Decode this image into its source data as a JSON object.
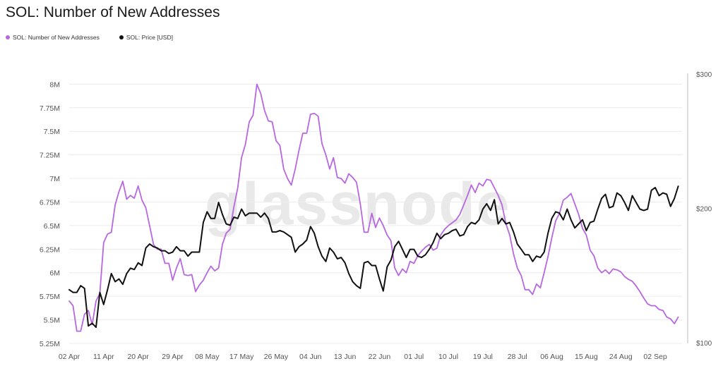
{
  "chart_data": {
    "type": "line",
    "title": "SOL: Number of New Addresses",
    "watermark": "glassnode",
    "x": [
      "02 Apr",
      "11 Apr",
      "20 Apr",
      "29 Apr",
      "08 May",
      "17 May",
      "26 May",
      "04 Jun",
      "13 Jun",
      "22 Jun",
      "01 Jul",
      "10 Jul",
      "19 Jul",
      "28 Jul",
      "06 Aug",
      "15 Aug",
      "24 Aug",
      "02 Sep"
    ],
    "y_left_ticks": [
      "8M",
      "7.75M",
      "7.5M",
      "7.25M",
      "7M",
      "6.75M",
      "6.5M",
      "6.25M",
      "6M",
      "5.75M",
      "5.5M",
      "5.25M"
    ],
    "y_right_ticks": [
      "$300",
      "$200",
      "$100"
    ],
    "ylim_left": [
      5250000,
      8100000
    ],
    "ylim_right": [
      100,
      300
    ],
    "x_range_days": [
      0,
      160
    ],
    "series": [
      {
        "name": "SOL: Number of New Addresses",
        "color": "#b767e0",
        "axis": "left",
        "points": [
          [
            0,
            5.7
          ],
          [
            1,
            5.65
          ],
          [
            2,
            5.38
          ],
          [
            3,
            5.38
          ],
          [
            4,
            5.56
          ],
          [
            5,
            5.6
          ],
          [
            6,
            5.45
          ],
          [
            7,
            5.7
          ],
          [
            8,
            5.78
          ],
          [
            9,
            6.32
          ],
          [
            10,
            6.41
          ],
          [
            11,
            6.43
          ],
          [
            12,
            6.72
          ],
          [
            13,
            6.86
          ],
          [
            14,
            6.97
          ],
          [
            15,
            6.78
          ],
          [
            16,
            6.82
          ],
          [
            17,
            6.79
          ],
          [
            18,
            6.92
          ],
          [
            19,
            6.77
          ],
          [
            20,
            6.69
          ],
          [
            21,
            6.5
          ],
          [
            22,
            6.3
          ],
          [
            23,
            6.25
          ],
          [
            24,
            6.25
          ],
          [
            25,
            6.1
          ],
          [
            26,
            6.1
          ],
          [
            27,
            5.92
          ],
          [
            28,
            6.05
          ],
          [
            29,
            6.15
          ],
          [
            30,
            5.98
          ],
          [
            31,
            5.97
          ],
          [
            32,
            5.98
          ],
          [
            33,
            5.8
          ],
          [
            34,
            5.87
          ],
          [
            35,
            5.92
          ],
          [
            36,
            6.0
          ],
          [
            37,
            6.07
          ],
          [
            38,
            6.02
          ],
          [
            39,
            6.05
          ],
          [
            40,
            6.3
          ],
          [
            41,
            6.42
          ],
          [
            42,
            6.46
          ],
          [
            43,
            6.7
          ],
          [
            44,
            6.9
          ],
          [
            45,
            7.22
          ],
          [
            46,
            7.36
          ],
          [
            47,
            7.6
          ],
          [
            48,
            7.67
          ],
          [
            49,
            8.0
          ],
          [
            50,
            7.9
          ],
          [
            51,
            7.72
          ],
          [
            52,
            7.61
          ],
          [
            53,
            7.6
          ],
          [
            54,
            7.4
          ],
          [
            55,
            7.35
          ],
          [
            56,
            7.1
          ],
          [
            57,
            7.0
          ],
          [
            58,
            6.93
          ],
          [
            59,
            7.1
          ],
          [
            60,
            7.3
          ],
          [
            61,
            7.48
          ],
          [
            62,
            7.48
          ],
          [
            63,
            7.68
          ],
          [
            64,
            7.69
          ],
          [
            65,
            7.66
          ],
          [
            66,
            7.37
          ],
          [
            67,
            7.25
          ],
          [
            68,
            7.1
          ],
          [
            69,
            7.22
          ],
          [
            70,
            7.01
          ],
          [
            71,
            7.0
          ],
          [
            72,
            6.95
          ],
          [
            73,
            7.05
          ],
          [
            74,
            7.01
          ],
          [
            75,
            6.96
          ],
          [
            76,
            6.73
          ],
          [
            77,
            6.43
          ],
          [
            78,
            6.43
          ],
          [
            79,
            6.63
          ],
          [
            80,
            6.48
          ],
          [
            81,
            6.58
          ],
          [
            82,
            6.5
          ],
          [
            83,
            6.4
          ],
          [
            84,
            6.34
          ],
          [
            85,
            6.05
          ],
          [
            86,
            5.97
          ],
          [
            87,
            6.04
          ],
          [
            88,
            6.0
          ],
          [
            89,
            6.12
          ],
          [
            90,
            6.1
          ],
          [
            91,
            6.18
          ],
          [
            92,
            6.23
          ],
          [
            93,
            6.27
          ],
          [
            94,
            6.3
          ],
          [
            95,
            6.24
          ],
          [
            96,
            6.26
          ],
          [
            97,
            6.4
          ],
          [
            98,
            6.46
          ],
          [
            99,
            6.5
          ],
          [
            100,
            6.53
          ],
          [
            101,
            6.56
          ],
          [
            102,
            6.62
          ],
          [
            103,
            6.72
          ],
          [
            104,
            6.82
          ],
          [
            105,
            6.93
          ],
          [
            106,
            6.85
          ],
          [
            107,
            6.95
          ],
          [
            108,
            6.92
          ],
          [
            109,
            6.99
          ],
          [
            110,
            6.98
          ],
          [
            111,
            6.9
          ],
          [
            112,
            6.82
          ],
          [
            113,
            6.72
          ],
          [
            114,
            6.52
          ],
          [
            115,
            6.4
          ],
          [
            116,
            6.2
          ],
          [
            117,
            6.05
          ],
          [
            118,
            5.97
          ],
          [
            119,
            5.82
          ],
          [
            120,
            5.82
          ],
          [
            121,
            5.77
          ],
          [
            122,
            5.88
          ],
          [
            123,
            5.84
          ],
          [
            124,
            6.0
          ],
          [
            125,
            6.17
          ],
          [
            126,
            6.37
          ],
          [
            127,
            6.55
          ],
          [
            128,
            6.63
          ],
          [
            129,
            6.77
          ],
          [
            130,
            6.8
          ],
          [
            131,
            6.84
          ],
          [
            132,
            6.73
          ],
          [
            133,
            6.62
          ],
          [
            134,
            6.47
          ],
          [
            135,
            6.4
          ],
          [
            136,
            6.24
          ],
          [
            137,
            6.18
          ],
          [
            138,
            6.05
          ],
          [
            139,
            6.0
          ],
          [
            140,
            6.03
          ],
          [
            141,
            5.99
          ],
          [
            142,
            6.04
          ],
          [
            143,
            6.03
          ],
          [
            144,
            6.01
          ],
          [
            145,
            5.96
          ],
          [
            146,
            5.93
          ],
          [
            147,
            5.91
          ],
          [
            148,
            5.86
          ],
          [
            149,
            5.8
          ],
          [
            150,
            5.73
          ],
          [
            151,
            5.67
          ],
          [
            152,
            5.65
          ],
          [
            153,
            5.65
          ],
          [
            154,
            5.61
          ],
          [
            155,
            5.6
          ],
          [
            156,
            5.53
          ],
          [
            157,
            5.51
          ],
          [
            158,
            5.46
          ],
          [
            159,
            5.53
          ]
        ]
      },
      {
        "name": "SOL: Price [USD]",
        "color": "#111111",
        "axis": "right",
        "points": [
          [
            0,
            140
          ],
          [
            1,
            138
          ],
          [
            2,
            138
          ],
          [
            3,
            143
          ],
          [
            4,
            141
          ],
          [
            5,
            113
          ],
          [
            6,
            115
          ],
          [
            7,
            112
          ],
          [
            8,
            138
          ],
          [
            9,
            129
          ],
          [
            10,
            140
          ],
          [
            11,
            152
          ],
          [
            12,
            146
          ],
          [
            13,
            148
          ],
          [
            14,
            144
          ],
          [
            15,
            152
          ],
          [
            16,
            156
          ],
          [
            17,
            155
          ],
          [
            18,
            160
          ],
          [
            19,
            158
          ],
          [
            20,
            171
          ],
          [
            21,
            174
          ],
          [
            22,
            172
          ],
          [
            23,
            171
          ],
          [
            24,
            169
          ],
          [
            25,
            169
          ],
          [
            26,
            167
          ],
          [
            27,
            168
          ],
          [
            28,
            172
          ],
          [
            29,
            169
          ],
          [
            30,
            169
          ],
          [
            31,
            165
          ],
          [
            32,
            168
          ],
          [
            33,
            168
          ],
          [
            34,
            168
          ],
          [
            35,
            190
          ],
          [
            36,
            198
          ],
          [
            37,
            193
          ],
          [
            38,
            193
          ],
          [
            39,
            205
          ],
          [
            40,
            196
          ],
          [
            41,
            189
          ],
          [
            42,
            188
          ],
          [
            43,
            194
          ],
          [
            44,
            193
          ],
          [
            45,
            200
          ],
          [
            46,
            195
          ],
          [
            47,
            197
          ],
          [
            48,
            197
          ],
          [
            49,
            197
          ],
          [
            50,
            194
          ],
          [
            51,
            197
          ],
          [
            52,
            193
          ],
          [
            53,
            183
          ],
          [
            54,
            183
          ],
          [
            55,
            184
          ],
          [
            56,
            183
          ],
          [
            57,
            181
          ],
          [
            58,
            179
          ],
          [
            59,
            168
          ],
          [
            60,
            172
          ],
          [
            61,
            174
          ],
          [
            62,
            177
          ],
          [
            63,
            187
          ],
          [
            64,
            182
          ],
          [
            65,
            172
          ],
          [
            66,
            165
          ],
          [
            67,
            161
          ],
          [
            68,
            171
          ],
          [
            69,
            168
          ],
          [
            70,
            163
          ],
          [
            71,
            164
          ],
          [
            72,
            160
          ],
          [
            73,
            152
          ],
          [
            74,
            146
          ],
          [
            75,
            143
          ],
          [
            76,
            141
          ],
          [
            77,
            160
          ],
          [
            78,
            161
          ],
          [
            79,
            158
          ],
          [
            80,
            158
          ],
          [
            81,
            148
          ],
          [
            82,
            139
          ],
          [
            83,
            157
          ],
          [
            84,
            162
          ],
          [
            85,
            172
          ],
          [
            86,
            176
          ],
          [
            87,
            170
          ],
          [
            88,
            164
          ],
          [
            89,
            170
          ],
          [
            90,
            170
          ],
          [
            91,
            165
          ],
          [
            92,
            164
          ],
          [
            93,
            166
          ],
          [
            94,
            170
          ],
          [
            95,
            175
          ],
          [
            96,
            182
          ],
          [
            97,
            178
          ],
          [
            98,
            181
          ],
          [
            99,
            182
          ],
          [
            100,
            184
          ],
          [
            101,
            185
          ],
          [
            102,
            180
          ],
          [
            103,
            181
          ],
          [
            104,
            187
          ],
          [
            105,
            190
          ],
          [
            106,
            189
          ],
          [
            107,
            192
          ],
          [
            108,
            200
          ],
          [
            109,
            204
          ],
          [
            110,
            199
          ],
          [
            111,
            207
          ],
          [
            112,
            189
          ],
          [
            113,
            193
          ],
          [
            114,
            189
          ],
          [
            115,
            190
          ],
          [
            116,
            183
          ],
          [
            117,
            174
          ],
          [
            118,
            170
          ],
          [
            119,
            166
          ],
          [
            120,
            166
          ],
          [
            121,
            161
          ],
          [
            122,
            165
          ],
          [
            123,
            164
          ],
          [
            124,
            168
          ],
          [
            125,
            182
          ],
          [
            126,
            193
          ],
          [
            127,
            198
          ],
          [
            128,
            197
          ],
          [
            129,
            192
          ],
          [
            130,
            200
          ],
          [
            131,
            192
          ],
          [
            132,
            186
          ],
          [
            133,
            189
          ],
          [
            134,
            192
          ],
          [
            135,
            184
          ],
          [
            136,
            190
          ],
          [
            137,
            191
          ],
          [
            138,
            200
          ],
          [
            139,
            208
          ],
          [
            140,
            211
          ],
          [
            141,
            201
          ],
          [
            142,
            202
          ],
          [
            143,
            212
          ],
          [
            144,
            210
          ],
          [
            145,
            205
          ],
          [
            146,
            199
          ],
          [
            147,
            210
          ],
          [
            148,
            205
          ],
          [
            149,
            200
          ],
          [
            150,
            199
          ],
          [
            151,
            200
          ],
          [
            152,
            214
          ],
          [
            153,
            216
          ],
          [
            154,
            210
          ],
          [
            155,
            212
          ],
          [
            156,
            211
          ],
          [
            157,
            202
          ],
          [
            158,
            208
          ],
          [
            159,
            217
          ]
        ]
      }
    ]
  }
}
